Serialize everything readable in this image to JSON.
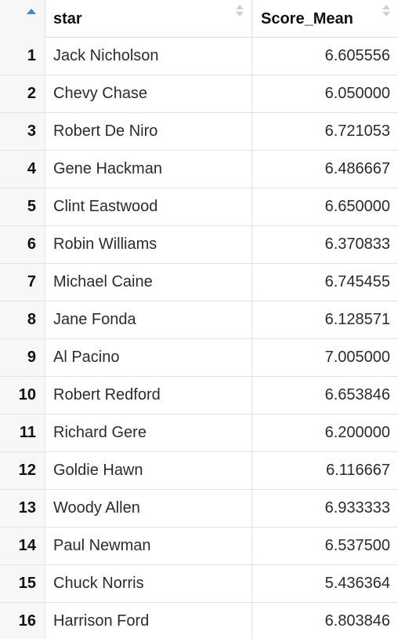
{
  "table": {
    "columns": [
      {
        "label": ""
      },
      {
        "label": "star"
      },
      {
        "label": "Score_Mean"
      }
    ],
    "rows": [
      {
        "index": "1",
        "star": "Jack Nicholson",
        "score_mean": "6.605556"
      },
      {
        "index": "2",
        "star": "Chevy Chase",
        "score_mean": "6.050000"
      },
      {
        "index": "3",
        "star": "Robert De Niro",
        "score_mean": "6.721053"
      },
      {
        "index": "4",
        "star": "Gene Hackman",
        "score_mean": "6.486667"
      },
      {
        "index": "5",
        "star": "Clint Eastwood",
        "score_mean": "6.650000"
      },
      {
        "index": "6",
        "star": "Robin Williams",
        "score_mean": "6.370833"
      },
      {
        "index": "7",
        "star": "Michael Caine",
        "score_mean": "6.745455"
      },
      {
        "index": "8",
        "star": "Jane Fonda",
        "score_mean": "6.128571"
      },
      {
        "index": "9",
        "star": "Al Pacino",
        "score_mean": "7.005000"
      },
      {
        "index": "10",
        "star": "Robert Redford",
        "score_mean": "6.653846"
      },
      {
        "index": "11",
        "star": "Richard Gere",
        "score_mean": "6.200000"
      },
      {
        "index": "12",
        "star": "Goldie Hawn",
        "score_mean": "6.116667"
      },
      {
        "index": "13",
        "star": "Woody Allen",
        "score_mean": "6.933333"
      },
      {
        "index": "14",
        "star": "Paul Newman",
        "score_mean": "6.537500"
      },
      {
        "index": "15",
        "star": "Chuck Norris",
        "score_mean": "5.436364"
      },
      {
        "index": "16",
        "star": "Harrison Ford",
        "score_mean": "6.803846"
      }
    ]
  },
  "icons": {
    "index_sort": "sort-ascending-icon",
    "column_sort": "sort-both-icon"
  },
  "colors": {
    "sort_active": "#3a8bd8",
    "sort_inactive": "#d0d0d0",
    "index_bg": "#f7f7f7",
    "border": "#e2e2e2"
  }
}
